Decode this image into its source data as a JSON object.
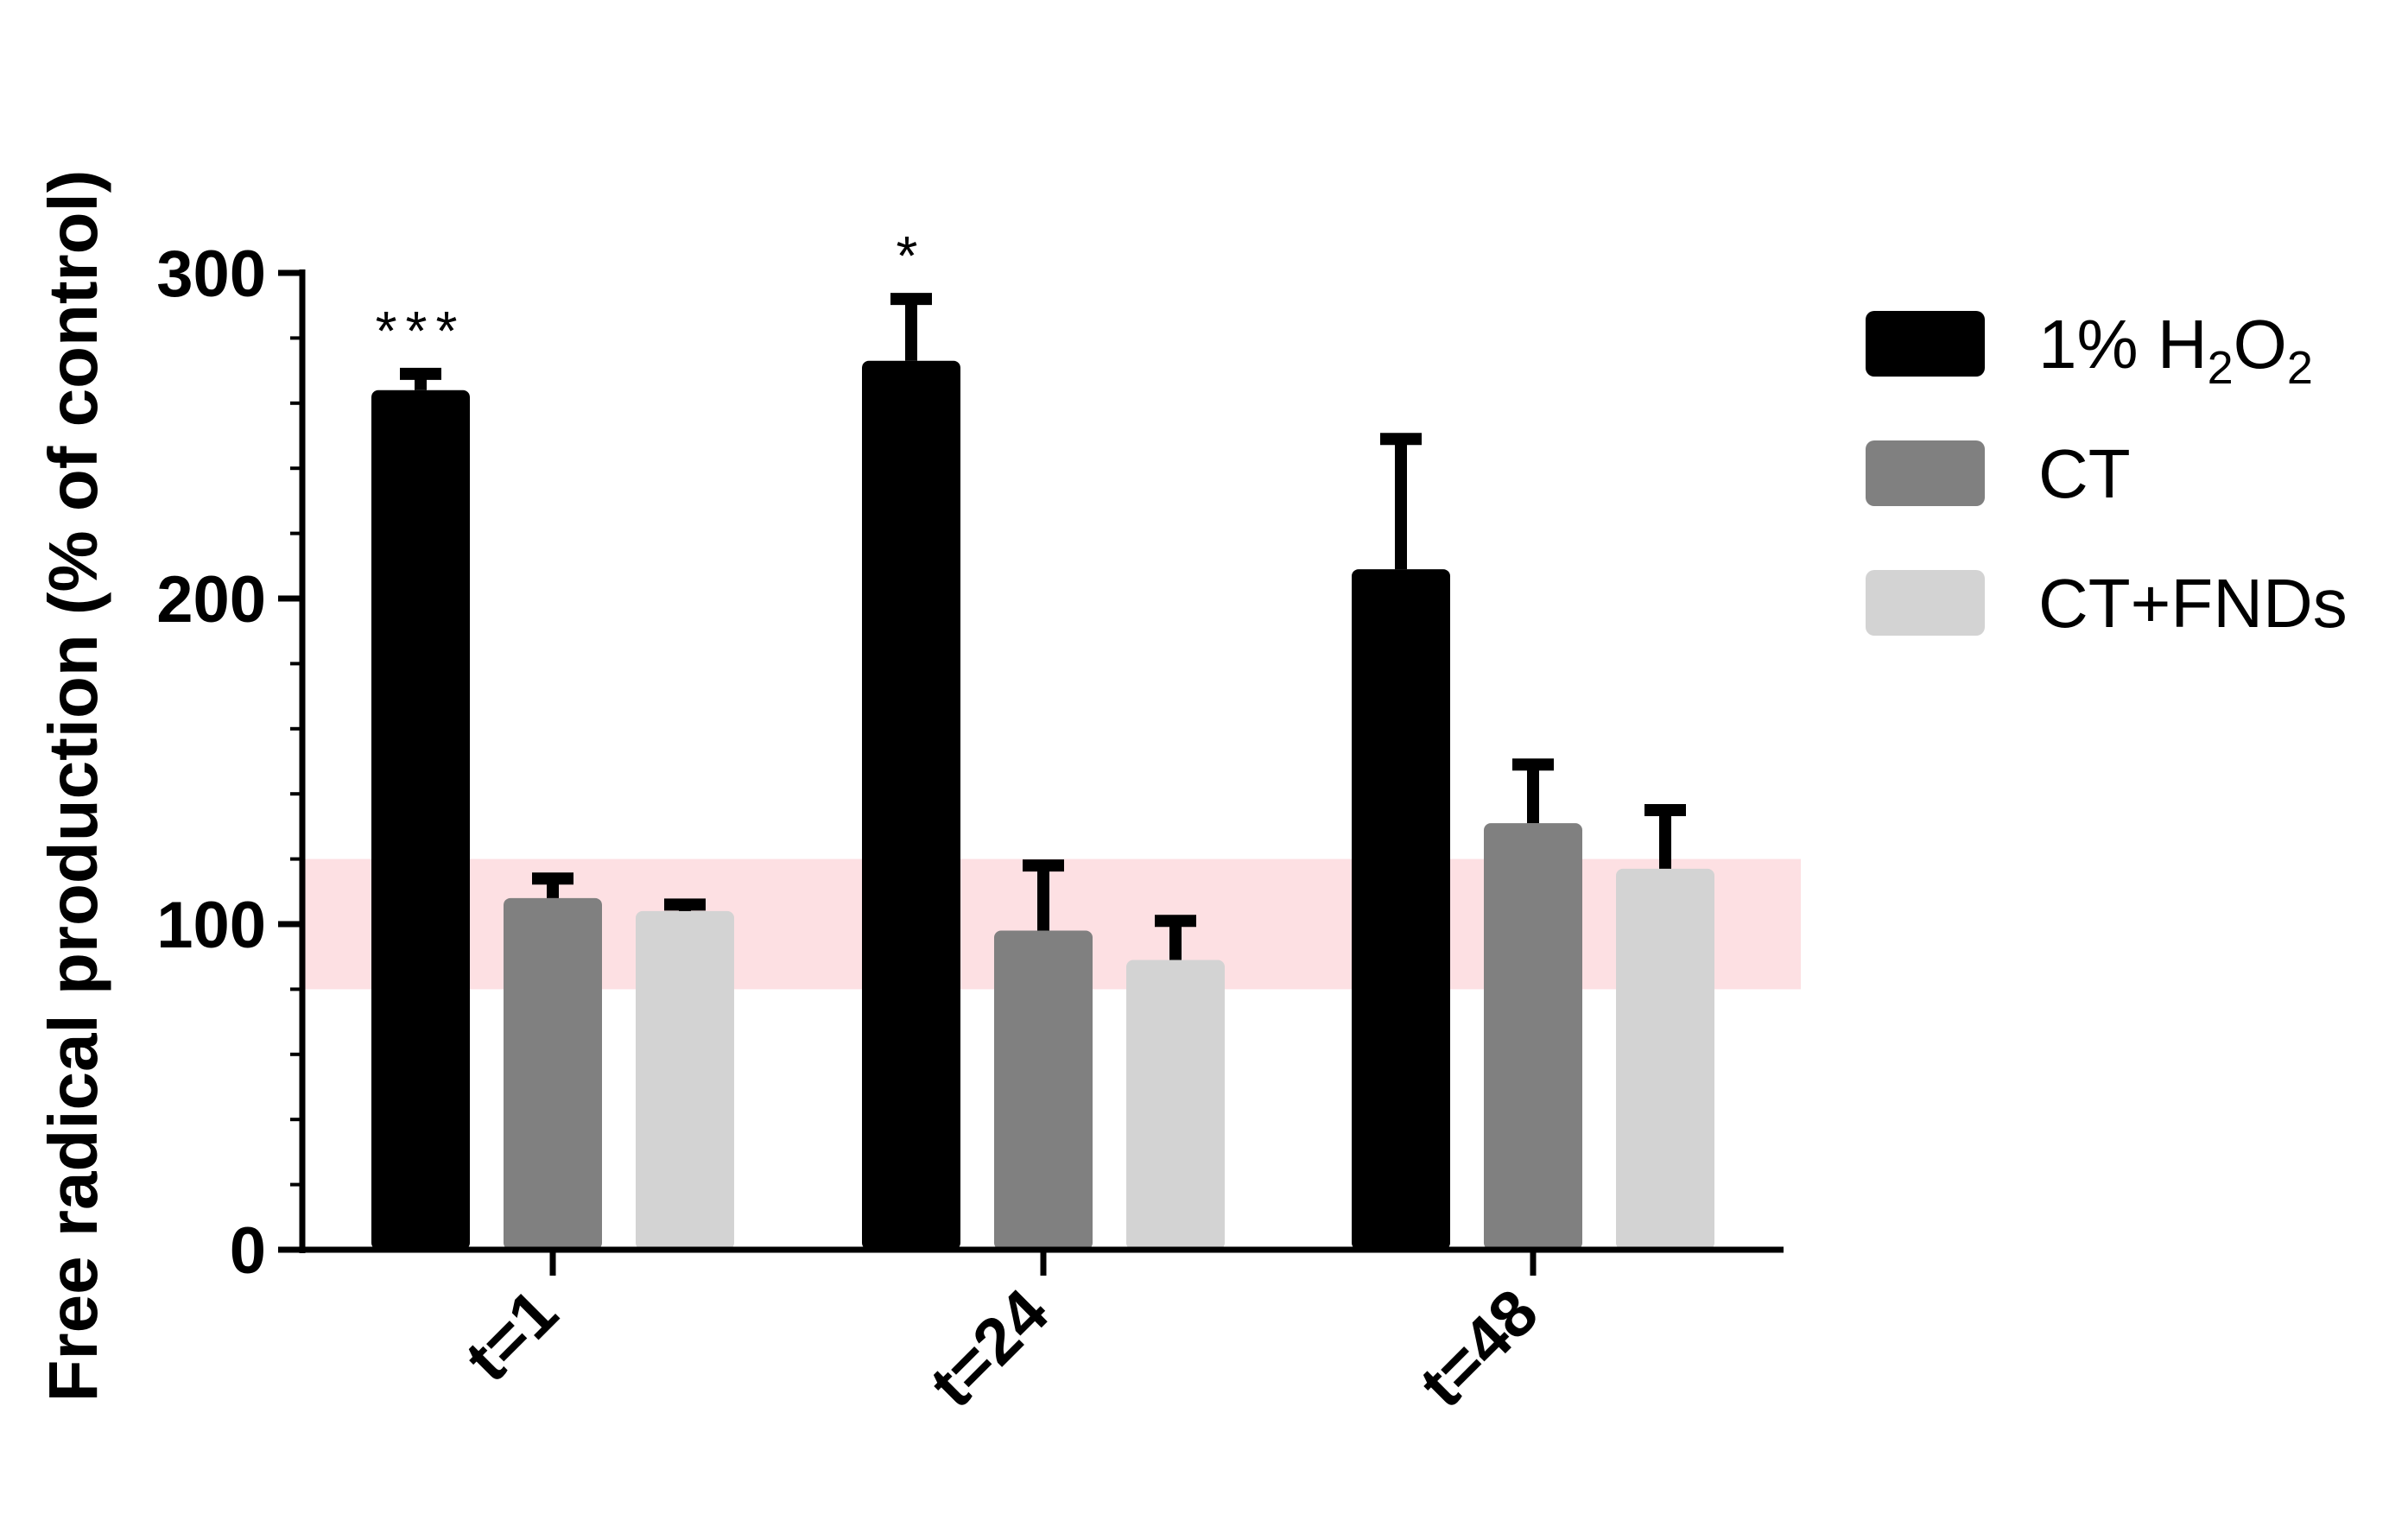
{
  "chart_data": {
    "type": "bar",
    "title": "",
    "xlabel": "",
    "ylabel": "Free radical production (% of control)",
    "ylim": [
      0,
      300
    ],
    "yticks": [
      "0",
      "100",
      "200",
      "300"
    ],
    "categories": [
      "t=1",
      "t=24",
      "t=48"
    ],
    "series": [
      {
        "name": "1% H2O2",
        "legend_main": "1% H",
        "legend_sub1": "2",
        "legend_mid": "O",
        "legend_sub2": "2",
        "color": "#000000",
        "values": [
          264,
          273,
          209
        ],
        "errors": [
          5,
          19,
          40
        ]
      },
      {
        "name": "CT",
        "color": "#808080",
        "values": [
          108,
          98,
          131
        ],
        "errors": [
          6,
          20,
          18
        ]
      },
      {
        "name": "CT+FNDs",
        "color": "#d3d3d3",
        "values": [
          104,
          89,
          117
        ],
        "errors": [
          2,
          12,
          18
        ]
      }
    ],
    "reference_band": {
      "from": 80,
      "to": 120,
      "color": "#fde0e3"
    },
    "annotations": [
      {
        "category": "t=1",
        "text": "***"
      },
      {
        "category": "t=24",
        "text": "*"
      }
    ],
    "legend_position": "right",
    "grid": false
  }
}
